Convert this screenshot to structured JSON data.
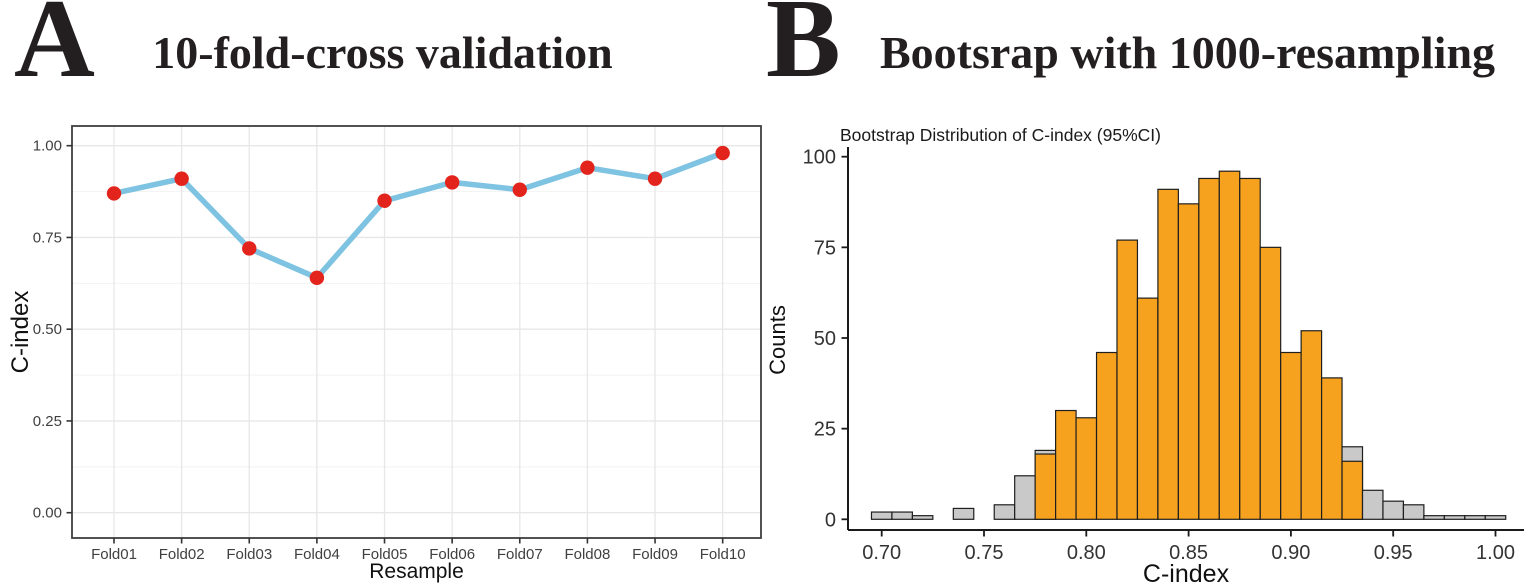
{
  "figure": {
    "panelA_letter": "A",
    "panelB_letter": "B"
  },
  "chart_data": [
    {
      "type": "line",
      "panel": "A",
      "title": "10-fold-cross validation",
      "xlabel": "Resample",
      "ylabel": "C-index",
      "categories": [
        "Fold01",
        "Fold02",
        "Fold03",
        "Fold04",
        "Fold05",
        "Fold06",
        "Fold07",
        "Fold08",
        "Fold09",
        "Fold10"
      ],
      "values": [
        0.87,
        0.91,
        0.72,
        0.64,
        0.85,
        0.9,
        0.88,
        0.94,
        0.91,
        0.98
      ],
      "ylim": [
        0,
        1
      ],
      "y_ticks": [
        0,
        0.25,
        0.5,
        0.75,
        1.0
      ],
      "y_tick_labels": [
        "0.00",
        "0.25",
        "0.50",
        "0.75",
        "1.00"
      ],
      "y_minor_ticks": [
        0.125,
        0.375,
        0.625,
        0.875
      ],
      "grid": true,
      "legend": "none",
      "line_color": "#7ec3e1",
      "point_color": "#e3241c",
      "grid_major_color": "#e7e7e7",
      "grid_minor_color": "#f2f2f2",
      "panel_border_color": "#3f3f3f",
      "axis_text_color": "#404040"
    },
    {
      "type": "bar",
      "panel": "B",
      "title": "Bootsrap with 1000-resampling",
      "subtitle": "Bootstrap Distribution of C-index (95%CI)",
      "xlabel": "C-index",
      "ylabel": "Counts",
      "bin_width": 0.01,
      "bin_centers": [
        0.7,
        0.71,
        0.72,
        0.73,
        0.74,
        0.75,
        0.76,
        0.77,
        0.78,
        0.79,
        0.8,
        0.81,
        0.82,
        0.83,
        0.84,
        0.85,
        0.86,
        0.87,
        0.88,
        0.89,
        0.9,
        0.91,
        0.92,
        0.93,
        0.94,
        0.95,
        0.96,
        0.97,
        0.98,
        0.99,
        1.0
      ],
      "counts_total": [
        2,
        2,
        1,
        0,
        3,
        0,
        4,
        12,
        19,
        30,
        28,
        46,
        77,
        61,
        91,
        87,
        94,
        96,
        94,
        75,
        46,
        52,
        39,
        20,
        8,
        5,
        4,
        1,
        1,
        1,
        1
      ],
      "counts_in_ci": [
        0,
        0,
        0,
        0,
        0,
        0,
        0,
        0,
        18,
        30,
        28,
        46,
        77,
        61,
        91,
        87,
        94,
        96,
        94,
        75,
        46,
        52,
        39,
        16,
        0,
        0,
        0,
        0,
        0,
        0,
        0
      ],
      "total_resamples": 1000,
      "xlim": [
        0.695,
        1.005
      ],
      "ylim": [
        0,
        100
      ],
      "x_ticks": [
        0.7,
        0.75,
        0.8,
        0.85,
        0.9,
        0.95,
        1.0
      ],
      "x_tick_labels": [
        "0.70",
        "0.75",
        "0.80",
        "0.85",
        "0.90",
        "0.95",
        "1.00"
      ],
      "y_ticks": [
        0,
        25,
        50,
        75,
        100
      ],
      "y_tick_labels": [
        "0",
        "25",
        "50",
        "75",
        "100"
      ],
      "grid": false,
      "legend": "none",
      "bar_color_in_ci": "#f6a21f",
      "bar_color_out_ci": "#c9c9c9",
      "bar_stroke_color": "#1f1f1f",
      "axis_line_color": "#1a1a1a",
      "axis_text_color": "#333333"
    }
  ]
}
